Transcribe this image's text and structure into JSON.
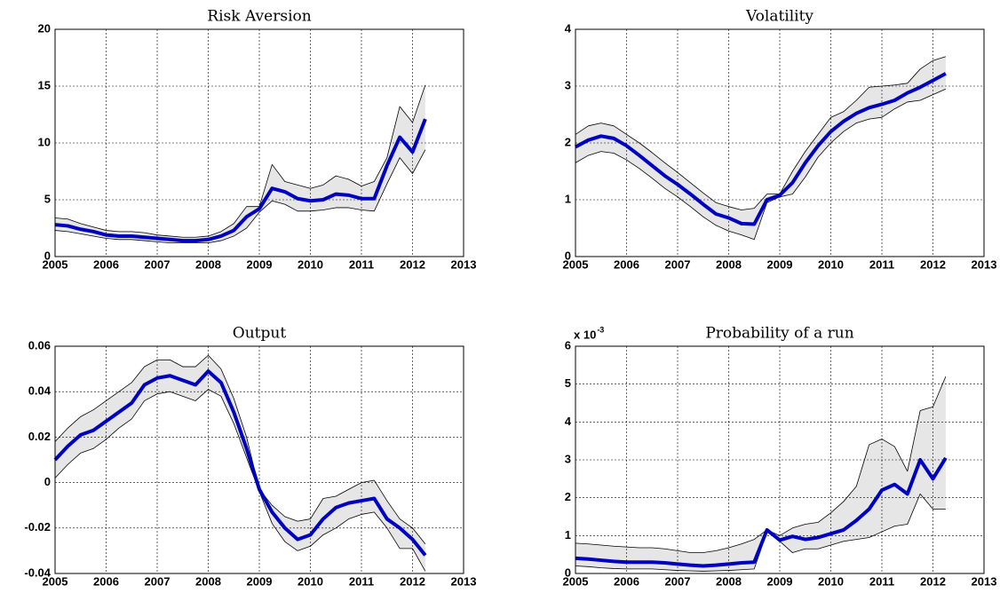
{
  "chart_data": [
    {
      "type": "line",
      "title": "Risk Aversion",
      "x": [
        2005,
        2005.25,
        2005.5,
        2005.75,
        2006,
        2006.25,
        2006.5,
        2006.75,
        2007,
        2007.25,
        2007.5,
        2007.75,
        2008,
        2008.25,
        2008.5,
        2008.75,
        2009,
        2009.25,
        2009.5,
        2009.75,
        2010,
        2010.25,
        2010.5,
        2010.75,
        2011,
        2011.25,
        2011.5,
        2011.75,
        2012,
        2012.25
      ],
      "series": [
        {
          "color": "#0000c0",
          "values": [
            2.8,
            2.7,
            2.4,
            2.2,
            1.9,
            1.8,
            1.8,
            1.7,
            1.6,
            1.5,
            1.4,
            1.4,
            1.5,
            1.8,
            2.3,
            3.5,
            4.2,
            6.0,
            5.7,
            5.1,
            4.9,
            5.0,
            5.5,
            5.4,
            5.1,
            5.1,
            8.0,
            10.5,
            9.2,
            12.1
          ]
        },
        {
          "color": "#000000",
          "values": [
            3.4,
            3.3,
            2.9,
            2.6,
            2.3,
            2.2,
            2.2,
            2.1,
            1.9,
            1.8,
            1.7,
            1.7,
            1.8,
            2.2,
            2.9,
            4.4,
            4.4,
            8.1,
            6.6,
            6.3,
            6.0,
            6.3,
            7.1,
            6.8,
            6.2,
            6.6,
            8.7,
            13.2,
            11.8,
            15.1
          ]
        },
        {
          "color": "#000000",
          "values": [
            2.3,
            2.2,
            2.0,
            1.8,
            1.6,
            1.5,
            1.5,
            1.4,
            1.3,
            1.2,
            1.2,
            1.2,
            1.2,
            1.4,
            1.8,
            2.5,
            3.9,
            4.9,
            4.6,
            4.0,
            4.0,
            4.1,
            4.3,
            4.3,
            4.1,
            4.0,
            6.4,
            8.7,
            7.3,
            9.4
          ]
        }
      ],
      "band_fill": "#e6e6e6",
      "xlim": [
        2005,
        2013
      ],
      "xticks": [
        2005,
        2006,
        2007,
        2008,
        2009,
        2010,
        2011,
        2012,
        2013
      ],
      "ylim": [
        0,
        20
      ],
      "yticks": [
        0,
        5,
        10,
        15,
        20
      ],
      "grid": true
    },
    {
      "type": "line",
      "title": "Volatility",
      "x": [
        2005,
        2005.25,
        2005.5,
        2005.75,
        2006,
        2006.25,
        2006.5,
        2006.75,
        2007,
        2007.25,
        2007.5,
        2007.75,
        2008,
        2008.25,
        2008.5,
        2008.75,
        2009,
        2009.25,
        2009.5,
        2009.75,
        2010,
        2010.25,
        2010.5,
        2010.75,
        2011,
        2011.25,
        2011.5,
        2011.75,
        2012,
        2012.25
      ],
      "series": [
        {
          "color": "#0000c0",
          "values": [
            1.93,
            2.05,
            2.12,
            2.08,
            1.95,
            1.78,
            1.6,
            1.42,
            1.27,
            1.1,
            0.92,
            0.75,
            0.68,
            0.58,
            0.57,
            1.0,
            1.08,
            1.3,
            1.65,
            1.95,
            2.2,
            2.38,
            2.52,
            2.62,
            2.68,
            2.75,
            2.88,
            2.98,
            3.1,
            3.22
          ]
        },
        {
          "color": "#000000",
          "values": [
            2.15,
            2.3,
            2.35,
            2.3,
            2.15,
            2.0,
            1.83,
            1.65,
            1.48,
            1.3,
            1.12,
            0.95,
            0.88,
            0.82,
            0.85,
            1.1,
            1.1,
            1.5,
            1.85,
            2.15,
            2.45,
            2.55,
            2.75,
            2.98,
            3.0,
            3.02,
            3.05,
            3.3,
            3.45,
            3.52
          ]
        },
        {
          "color": "#000000",
          "values": [
            1.65,
            1.78,
            1.85,
            1.82,
            1.7,
            1.55,
            1.38,
            1.2,
            1.05,
            0.88,
            0.7,
            0.55,
            0.45,
            0.38,
            0.3,
            0.95,
            1.05,
            1.1,
            1.4,
            1.75,
            2.0,
            2.2,
            2.35,
            2.42,
            2.45,
            2.6,
            2.72,
            2.75,
            2.85,
            2.95
          ]
        }
      ],
      "band_fill": "#e6e6e6",
      "xlim": [
        2005,
        2013
      ],
      "xticks": [
        2005,
        2006,
        2007,
        2008,
        2009,
        2010,
        2011,
        2012,
        2013
      ],
      "ylim": [
        0,
        4
      ],
      "yticks": [
        0,
        1,
        2,
        3,
        4
      ],
      "grid": true
    },
    {
      "type": "line",
      "title": "Output",
      "x": [
        2005,
        2005.25,
        2005.5,
        2005.75,
        2006,
        2006.25,
        2006.5,
        2006.75,
        2007,
        2007.25,
        2007.5,
        2007.75,
        2008,
        2008.25,
        2008.5,
        2008.75,
        2009,
        2009.25,
        2009.5,
        2009.75,
        2010,
        2010.25,
        2010.5,
        2010.75,
        2011,
        2011.25,
        2011.5,
        2011.75,
        2012,
        2012.25
      ],
      "series": [
        {
          "color": "#0000c0",
          "values": [
            0.01,
            0.016,
            0.021,
            0.023,
            0.027,
            0.031,
            0.035,
            0.043,
            0.046,
            0.047,
            0.045,
            0.043,
            0.049,
            0.044,
            0.031,
            0.015,
            -0.003,
            -0.013,
            -0.02,
            -0.025,
            -0.023,
            -0.016,
            -0.011,
            -0.009,
            -0.008,
            -0.007,
            -0.016,
            -0.02,
            -0.025,
            -0.032
          ]
        },
        {
          "color": "#000000",
          "values": [
            0.018,
            0.024,
            0.029,
            0.032,
            0.036,
            0.04,
            0.044,
            0.051,
            0.054,
            0.054,
            0.051,
            0.051,
            0.056,
            0.05,
            0.037,
            0.02,
            -0.003,
            -0.01,
            -0.015,
            -0.017,
            -0.016,
            -0.007,
            -0.006,
            -0.003,
            0.0,
            0.001,
            -0.008,
            -0.016,
            -0.02,
            -0.027
          ]
        },
        {
          "color": "#000000",
          "values": [
            0.002,
            0.008,
            0.013,
            0.015,
            0.019,
            0.024,
            0.028,
            0.036,
            0.039,
            0.04,
            0.038,
            0.036,
            0.041,
            0.038,
            0.026,
            0.011,
            -0.004,
            -0.018,
            -0.026,
            -0.03,
            -0.028,
            -0.023,
            -0.02,
            -0.016,
            -0.014,
            -0.013,
            -0.02,
            -0.029,
            -0.029,
            -0.039
          ]
        }
      ],
      "band_fill": "#e6e6e6",
      "xlim": [
        2005,
        2013
      ],
      "xticks": [
        2005,
        2006,
        2007,
        2008,
        2009,
        2010,
        2011,
        2012,
        2013
      ],
      "ylim": [
        -0.04,
        0.06
      ],
      "yticks": [
        -0.04,
        -0.02,
        0,
        0.02,
        0.04,
        0.06
      ],
      "grid": true
    },
    {
      "type": "line",
      "title": "Probability of a run",
      "y_multiplier": {
        "base": "x 10",
        "exponent": "-3"
      },
      "x": [
        2005,
        2005.25,
        2005.5,
        2005.75,
        2006,
        2006.25,
        2006.5,
        2006.75,
        2007,
        2007.25,
        2007.5,
        2007.75,
        2008,
        2008.25,
        2008.5,
        2008.75,
        2009,
        2009.25,
        2009.5,
        2009.75,
        2010,
        2010.25,
        2010.5,
        2010.75,
        2011,
        2011.25,
        2011.5,
        2011.75,
        2012,
        2012.25
      ],
      "series": [
        {
          "color": "#0000c0",
          "values": [
            0.4,
            0.38,
            0.35,
            0.32,
            0.3,
            0.3,
            0.3,
            0.28,
            0.25,
            0.22,
            0.2,
            0.22,
            0.25,
            0.28,
            0.3,
            1.15,
            0.88,
            0.98,
            0.9,
            0.95,
            1.05,
            1.15,
            1.4,
            1.7,
            2.2,
            2.35,
            2.1,
            3.0,
            2.5,
            3.05
          ]
        },
        {
          "color": "#000000",
          "values": [
            0.8,
            0.78,
            0.75,
            0.72,
            0.7,
            0.68,
            0.68,
            0.65,
            0.6,
            0.55,
            0.55,
            0.6,
            0.68,
            0.78,
            0.9,
            1.15,
            1.0,
            1.2,
            1.3,
            1.35,
            1.6,
            1.9,
            2.3,
            3.4,
            3.55,
            3.35,
            2.7,
            4.3,
            4.4,
            5.2
          ]
        },
        {
          "color": "#000000",
          "values": [
            0.2,
            0.18,
            0.15,
            0.13,
            0.12,
            0.12,
            0.12,
            0.1,
            0.08,
            0.07,
            0.06,
            0.07,
            0.08,
            0.1,
            0.12,
            1.1,
            0.85,
            0.55,
            0.65,
            0.65,
            0.75,
            0.85,
            0.9,
            0.95,
            1.1,
            1.25,
            1.3,
            2.1,
            1.7,
            1.7
          ]
        }
      ],
      "band_fill": "#e6e6e6",
      "xlim": [
        2005,
        2013
      ],
      "xticks": [
        2005,
        2006,
        2007,
        2008,
        2009,
        2010,
        2011,
        2012,
        2013
      ],
      "ylim": [
        0,
        6
      ],
      "yticks": [
        0,
        1,
        2,
        3,
        4,
        5,
        6
      ],
      "grid": true
    }
  ]
}
